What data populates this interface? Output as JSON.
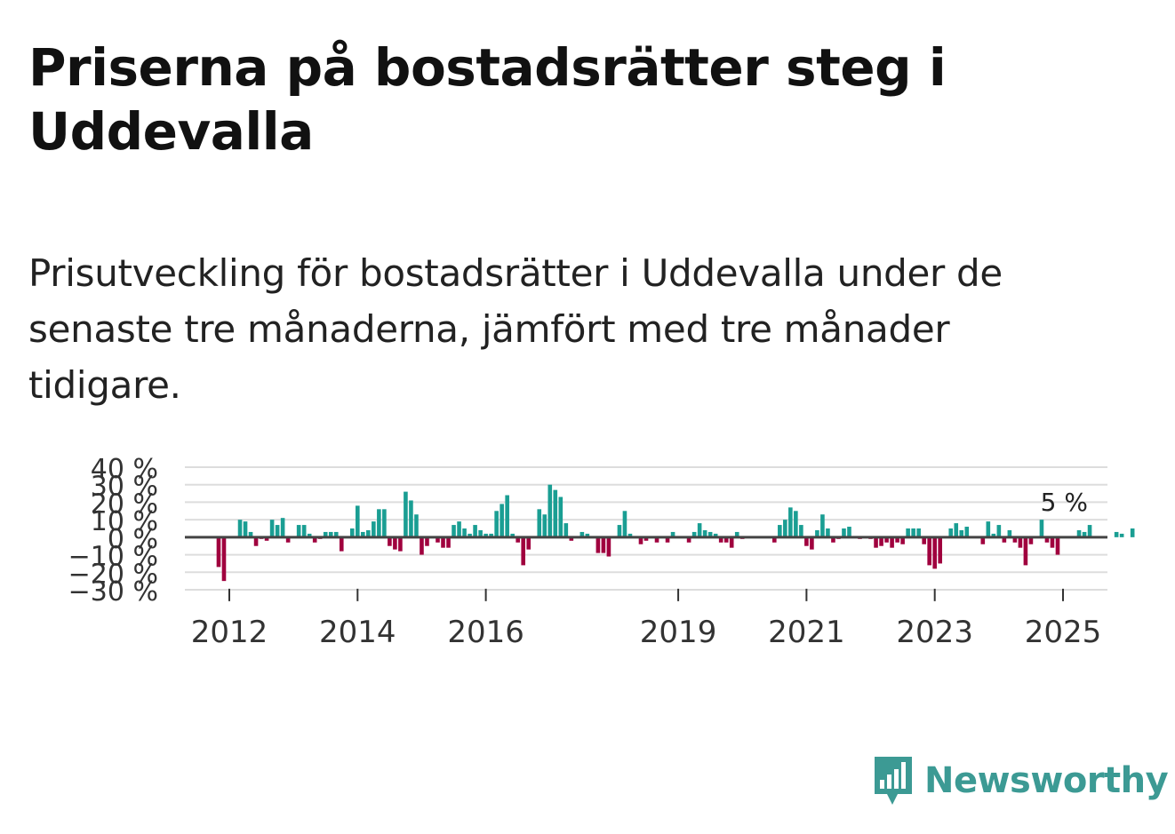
{
  "header": {
    "title": "Priserna på bostadsrätter steg i Uddevalla",
    "subtitle": "Prisutveckling för bostadsrätter i Uddevalla under de senaste tre månaderna, jämfört med tre månader tidigare."
  },
  "logo": {
    "text": "Newsworthy",
    "icon": "newsworthy-logo-icon",
    "color": "#3c9a94"
  },
  "colors": {
    "positive": "#1a9e93",
    "negative": "#a0003e",
    "grid": "#dddddd",
    "zero": "#444444"
  },
  "chart_data": {
    "type": "bar",
    "title": "Priserna på bostadsrätter steg i Uddevalla",
    "ylabel": "",
    "xlabel": "",
    "ylim": [
      -30,
      40
    ],
    "yticks": [
      -30,
      -20,
      -10,
      0,
      10,
      20,
      30,
      40
    ],
    "ytick_labels": [
      "−30 %",
      "−20 %",
      "−10 %",
      "0 %",
      "10 %",
      "20 %",
      "30 %",
      "40 %"
    ],
    "xticks": [
      {
        "label": "2012",
        "year": 2012
      },
      {
        "label": "2014",
        "year": 2014
      },
      {
        "label": "2016",
        "year": 2016
      },
      {
        "label": "2019",
        "year": 2019
      },
      {
        "label": "2021",
        "year": 2021
      },
      {
        "label": "2023",
        "year": 2023
      },
      {
        "label": "2025",
        "year": 2025
      }
    ],
    "start": "2011-11",
    "end": "2025-09",
    "last_value_label": "5 %",
    "values": [
      -17,
      -25,
      0,
      0,
      10,
      9,
      3,
      -5,
      -1,
      -2,
      10,
      7,
      11,
      -3,
      0,
      7,
      7,
      2,
      -3,
      -1,
      3,
      3,
      3,
      -8,
      0,
      5,
      18,
      3,
      4,
      9,
      16,
      16,
      -5,
      -7,
      -8,
      26,
      21,
      13,
      -10,
      -5,
      0,
      -3,
      -6,
      -6,
      7,
      9,
      5,
      2,
      7,
      4,
      2,
      2,
      15,
      19,
      24,
      2,
      -3,
      -16,
      -7,
      0,
      16,
      13,
      30,
      27,
      23,
      8,
      -2,
      0,
      3,
      2,
      0,
      -9,
      -9,
      -11,
      0,
      7,
      15,
      2,
      0,
      -4,
      -2,
      0,
      -3,
      0,
      -3,
      3,
      0,
      0,
      -3,
      3,
      8,
      4,
      3,
      2,
      -3,
      -3,
      -6,
      3,
      -1,
      0,
      0,
      0,
      0,
      0,
      -3,
      7,
      10,
      17,
      15,
      7,
      -5,
      -7,
      4,
      13,
      5,
      -3,
      -1,
      5,
      6,
      0,
      -1,
      0,
      -1,
      -6,
      -5,
      -3,
      -6,
      -3,
      -4,
      5,
      5,
      5,
      -4,
      -16,
      -18,
      -15,
      0,
      5,
      8,
      4,
      6,
      0,
      0,
      -4,
      9,
      2,
      7,
      -3,
      4,
      -3,
      -6,
      -16,
      -4,
      0,
      10,
      -3,
      -6,
      -10,
      0,
      0,
      0,
      4,
      3,
      7,
      0,
      0,
      0,
      0,
      3,
      2,
      0,
      5
    ]
  }
}
